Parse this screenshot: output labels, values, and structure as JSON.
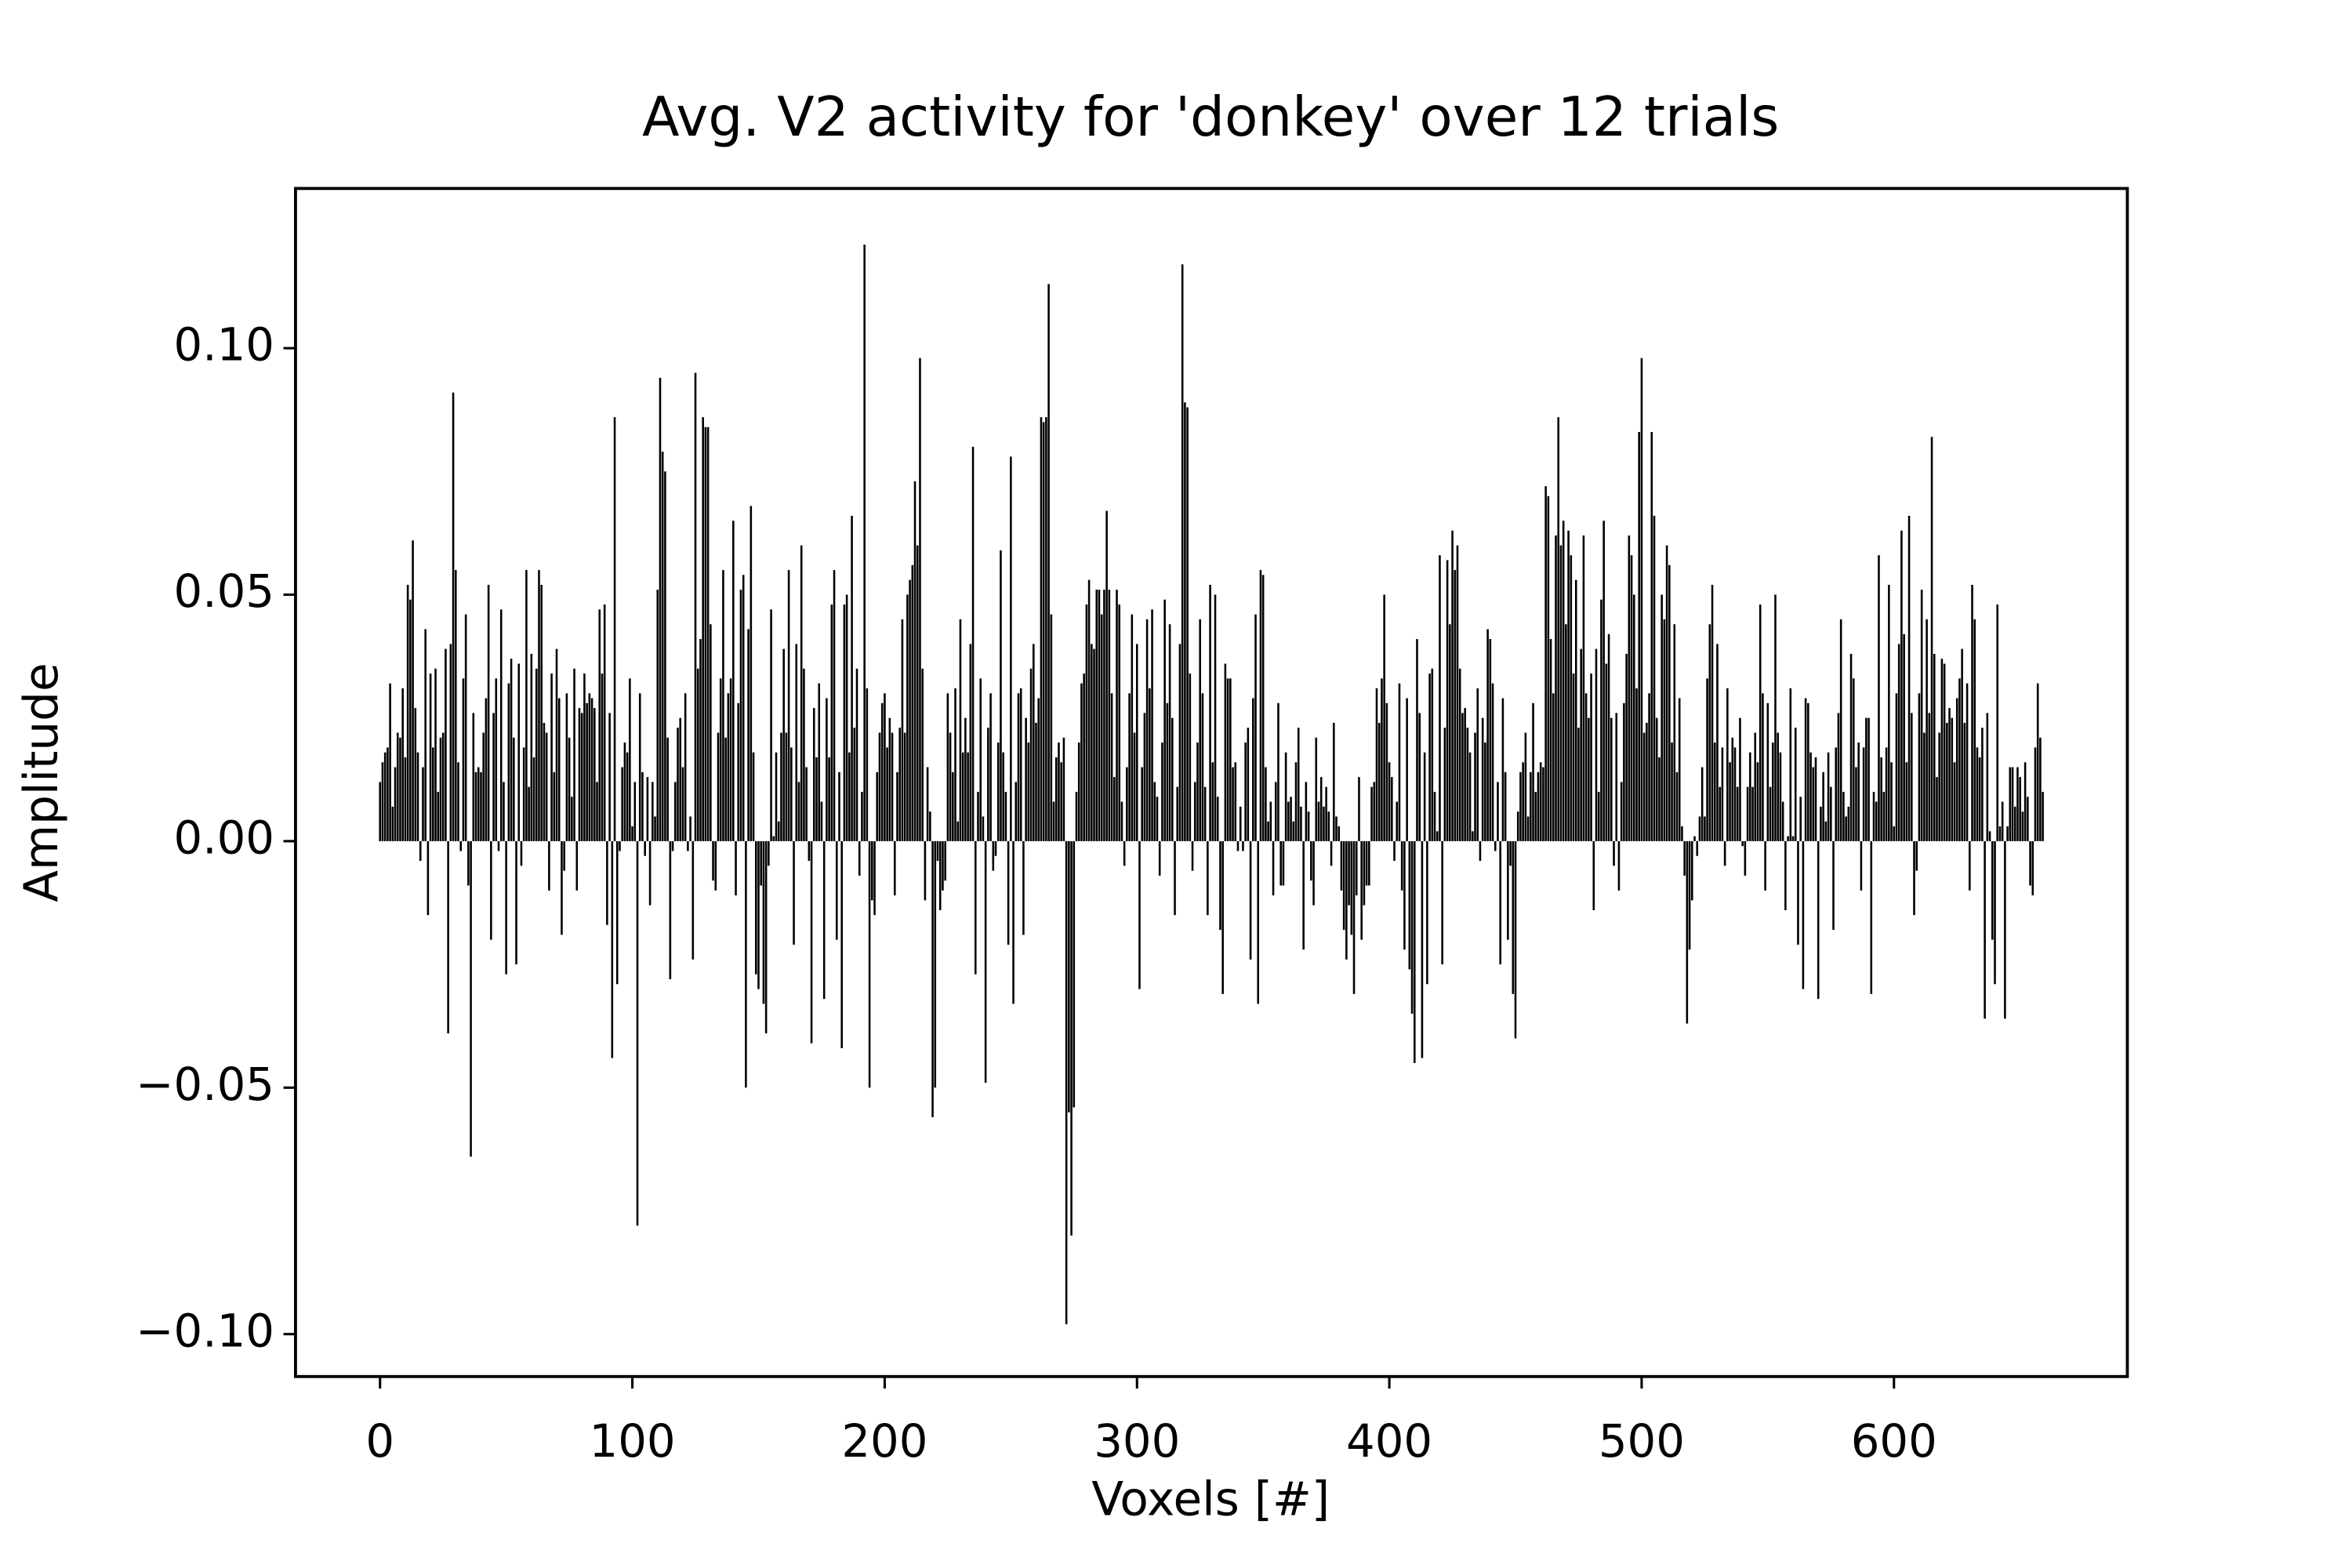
{
  "chart_data": {
    "type": "bar",
    "title": "Avg. V2 activity for 'donkey' over 12 trials",
    "xlabel": "Voxels [#]",
    "ylabel": "Amplitude",
    "color": "#000000",
    "xlim": [
      -33.5,
      692.5
    ],
    "ylim": [
      -0.1086,
      0.1324
    ],
    "xticks": [
      0,
      100,
      200,
      300,
      400,
      500,
      600
    ],
    "yticks": [
      {
        "value": -0.1,
        "label": "−0.10"
      },
      {
        "value": -0.05,
        "label": "−0.05"
      },
      {
        "value": 0,
        "label": "0.00"
      },
      0.05,
      {
        "value": 0.1,
        "label": "0.10"
      }
    ],
    "x": [
      0,
      1,
      2,
      3,
      4,
      5,
      6,
      7,
      8,
      9,
      10,
      11,
      12,
      13,
      14,
      15,
      16,
      17,
      18,
      19,
      20,
      21,
      22,
      23,
      24,
      25,
      26,
      27,
      28,
      29,
      30,
      31,
      32,
      33,
      34,
      35,
      36,
      37,
      38,
      39,
      40,
      41,
      42,
      43,
      44,
      45,
      46,
      47,
      48,
      49,
      50,
      51,
      52,
      53,
      54,
      55,
      56,
      57,
      58,
      59,
      60,
      61,
      62,
      63,
      64,
      65,
      66,
      67,
      68,
      69,
      70,
      71,
      72,
      73,
      74,
      75,
      76,
      77,
      78,
      79,
      80,
      81,
      82,
      83,
      84,
      85,
      86,
      87,
      88,
      89,
      90,
      91,
      92,
      93,
      94,
      95,
      96,
      97,
      98,
      99,
      100,
      101,
      102,
      103,
      104,
      105,
      106,
      107,
      108,
      109,
      110,
      111,
      112,
      113,
      114,
      115,
      116,
      117,
      118,
      119,
      120,
      121,
      122,
      123,
      124,
      125,
      126,
      127,
      128,
      129,
      130,
      131,
      132,
      133,
      134,
      135,
      136,
      137,
      138,
      139,
      140,
      141,
      142,
      143,
      144,
      145,
      146,
      147,
      148,
      149,
      150,
      151,
      152,
      153,
      154,
      155,
      156,
      157,
      158,
      159,
      160,
      161,
      162,
      163,
      164,
      165,
      166,
      167,
      168,
      169,
      170,
      171,
      172,
      173,
      174,
      175,
      176,
      177,
      178,
      179,
      180,
      181,
      182,
      183,
      184,
      185,
      186,
      187,
      188,
      189,
      190,
      191,
      192,
      193,
      194,
      195,
      196,
      197,
      198,
      199,
      200,
      201,
      202,
      203,
      204,
      205,
      206,
      207,
      208,
      209,
      210,
      211,
      212,
      213,
      214,
      215,
      216,
      217,
      218,
      219,
      220,
      221,
      222,
      223,
      224,
      225,
      226,
      227,
      228,
      229,
      230,
      231,
      232,
      233,
      234,
      235,
      236,
      237,
      238,
      239,
      240,
      241,
      242,
      243,
      244,
      245,
      246,
      247,
      248,
      249,
      250,
      251,
      252,
      253,
      254,
      255,
      256,
      257,
      258,
      259,
      260,
      261,
      262,
      263,
      264,
      265,
      266,
      267,
      268,
      269,
      270,
      271,
      272,
      273,
      274,
      275,
      276,
      277,
      278,
      279,
      280,
      281,
      282,
      283,
      284,
      285,
      286,
      287,
      288,
      289,
      290,
      291,
      292,
      293,
      294,
      295,
      296,
      297,
      298,
      299,
      300,
      301,
      302,
      303,
      304,
      305,
      306,
      307,
      308,
      309,
      310,
      311,
      312,
      313,
      314,
      315,
      316,
      317,
      318,
      319,
      320,
      321,
      322,
      323,
      324,
      325,
      326,
      327,
      328,
      329,
      330,
      331,
      332,
      333,
      334,
      335,
      336,
      337,
      338,
      339,
      340,
      341,
      342,
      343,
      344,
      345,
      346,
      347,
      348,
      349,
      350,
      351,
      352,
      353,
      354,
      355,
      356,
      357,
      358,
      359,
      360,
      361,
      362,
      363,
      364,
      365,
      366,
      367,
      368,
      369,
      370,
      371,
      372,
      373,
      374,
      375,
      376,
      377,
      378,
      379,
      380,
      381,
      382,
      383,
      384,
      385,
      386,
      387,
      388,
      389,
      390,
      391,
      392,
      393,
      394,
      395,
      396,
      397,
      398,
      399,
      400,
      401,
      402,
      403,
      404,
      405,
      406,
      407,
      408,
      409,
      410,
      411,
      412,
      413,
      414,
      415,
      416,
      417,
      418,
      419,
      420,
      421,
      422,
      423,
      424,
      425,
      426,
      427,
      428,
      429,
      430,
      431,
      432,
      433,
      434,
      435,
      436,
      437,
      438,
      439,
      440,
      441,
      442,
      443,
      444,
      445,
      446,
      447,
      448,
      449,
      450,
      451,
      452,
      453,
      454,
      455,
      456,
      457,
      458,
      459,
      460,
      461,
      462,
      463,
      464,
      465,
      466,
      467,
      468,
      469,
      470,
      471,
      472,
      473,
      474,
      475,
      476,
      477,
      478,
      479,
      480,
      481,
      482,
      483,
      484,
      485,
      486,
      487,
      488,
      489,
      490,
      491,
      492,
      493,
      494,
      495,
      496,
      497,
      498,
      499,
      500,
      501,
      502,
      503,
      504,
      505,
      506,
      507,
      508,
      509,
      510,
      511,
      512,
      513,
      514,
      515,
      516,
      517,
      518,
      519,
      520,
      521,
      522,
      523,
      524,
      525,
      526,
      527,
      528,
      529,
      530,
      531,
      532,
      533,
      534,
      535,
      536,
      537,
      538,
      539,
      540,
      541,
      542,
      543,
      544,
      545,
      546,
      547,
      548,
      549,
      550,
      551,
      552,
      553,
      554,
      555,
      556,
      557,
      558,
      559,
      560,
      561,
      562,
      563,
      564,
      565,
      566,
      567,
      568,
      569,
      570,
      571,
      572,
      573,
      574,
      575,
      576,
      577,
      578,
      579,
      580,
      581,
      582,
      583,
      584,
      585,
      586,
      587,
      588,
      589,
      590,
      591,
      592,
      593,
      594,
      595,
      596,
      597,
      598,
      599,
      600,
      601,
      602,
      603,
      604,
      605,
      606,
      607,
      608,
      609,
      610,
      611,
      612,
      613,
      614,
      615,
      616,
      617,
      618,
      619,
      620,
      621,
      622,
      623,
      624,
      625,
      626,
      627,
      628,
      629,
      630,
      631,
      632,
      633,
      634,
      635,
      636,
      637,
      638,
      639,
      640,
      641,
      642,
      643,
      644,
      645,
      646,
      647,
      648,
      649,
      650,
      651,
      652,
      653,
      654,
      655,
      656,
      657,
      658,
      659
    ],
    "values": [
      0.012,
      0.016,
      0.018,
      0.019,
      0.032,
      0.007,
      0.015,
      0.022,
      0.021,
      0.031,
      0.017,
      0.052,
      0.049,
      0.061,
      0.027,
      0.018,
      -0.004,
      0.015,
      0.043,
      -0.015,
      0.034,
      0.019,
      0.035,
      0.01,
      0.021,
      0.022,
      0.039,
      -0.039,
      0.04,
      0.091,
      0.055,
      0.016,
      -0.002,
      0.033,
      0.046,
      -0.009,
      -0.064,
      0.026,
      0.014,
      0.015,
      0.014,
      0.022,
      0.029,
      0.052,
      -0.02,
      0.026,
      0.033,
      -0.002,
      0.047,
      0.012,
      -0.027,
      0.032,
      0.037,
      0.021,
      -0.025,
      0.036,
      -0.005,
      0.019,
      0.055,
      0.011,
      0.038,
      0.017,
      0.035,
      0.055,
      0.052,
      0.024,
      0.022,
      -0.01,
      0.034,
      0.014,
      0.039,
      0.029,
      -0.019,
      -0.006,
      0.03,
      0.021,
      0.009,
      0.035,
      -0.01,
      0.027,
      0.026,
      0.034,
      0.028,
      0.03,
      0.029,
      0.027,
      0.012,
      0.047,
      0.034,
      0.048,
      -0.017,
      0.026,
      -0.044,
      0.086,
      -0.029,
      -0.002,
      0.015,
      0.02,
      0.018,
      0.033,
      0.003,
      0.012,
      -0.078,
      0.03,
      0.014,
      -0.003,
      0.013,
      -0.013,
      0.012,
      0.005,
      0.051,
      0.094,
      0.079,
      0.075,
      0.021,
      -0.028,
      -0.002,
      0.012,
      0.023,
      0.025,
      0.015,
      0.03,
      -0.002,
      0.005,
      -0.024,
      0.095,
      0.035,
      0.041,
      0.086,
      0.084,
      0.084,
      0.044,
      -0.008,
      -0.01,
      0.022,
      0.033,
      0.055,
      0.021,
      0.03,
      0.033,
      0.065,
      -0.011,
      0.028,
      0.051,
      0.054,
      -0.05,
      0.043,
      0.068,
      0.018,
      -0.027,
      -0.03,
      -0.009,
      -0.033,
      -0.039,
      -0.005,
      0.047,
      0.001,
      0.018,
      0.004,
      0.022,
      0.039,
      0.022,
      0.055,
      0.019,
      -0.021,
      0.04,
      0.012,
      0.06,
      0.035,
      0.015,
      -0.004,
      -0.041,
      0.027,
      0.017,
      0.032,
      0.008,
      -0.032,
      0.029,
      0.017,
      0.048,
      0.055,
      -0.02,
      0.014,
      -0.042,
      0.048,
      0.05,
      0.018,
      0.066,
      0.023,
      0.035,
      -0.007,
      0.01,
      0.121,
      0.031,
      -0.05,
      -0.012,
      -0.015,
      0.014,
      0.022,
      0.028,
      0.03,
      0.019,
      0.025,
      0.022,
      -0.011,
      0.014,
      0.023,
      0.045,
      0.022,
      0.05,
      0.053,
      0.056,
      0.073,
      0.06,
      0.098,
      0.035,
      -0.012,
      0.015,
      0.006,
      -0.056,
      -0.05,
      -0.004,
      -0.014,
      -0.01,
      -0.008,
      0.03,
      0.022,
      0.014,
      0.031,
      0.004,
      0.045,
      0.018,
      0.025,
      0.018,
      0.04,
      0.08,
      -0.027,
      0.01,
      0.033,
      0.005,
      -0.049,
      0.023,
      0.03,
      -0.006,
      -0.003,
      0.02,
      0.059,
      0.018,
      0.01,
      -0.021,
      0.078,
      -0.033,
      0.012,
      0.03,
      0.031,
      -0.019,
      0.025,
      0.02,
      0.035,
      0.04,
      0.024,
      0.029,
      0.086,
      0.085,
      0.086,
      0.113,
      0.046,
      0.008,
      0.017,
      0.02,
      0.016,
      0.021,
      -0.098,
      -0.055,
      -0.08,
      -0.054,
      0.01,
      0.02,
      0.032,
      0.034,
      0.048,
      0.053,
      0.04,
      0.039,
      0.051,
      0.051,
      0.046,
      0.051,
      0.067,
      0.051,
      0.03,
      0.013,
      0.051,
      0.048,
      0.008,
      -0.005,
      0.015,
      0.03,
      0.046,
      0.022,
      0.04,
      -0.03,
      0.015,
      0.026,
      0.045,
      0.031,
      0.047,
      0.012,
      0.009,
      -0.007,
      0.02,
      0.049,
      0.028,
      0.044,
      0.025,
      -0.015,
      0.011,
      0.04,
      0.117,
      0.089,
      0.088,
      0.034,
      -0.006,
      0.012,
      0.02,
      0.045,
      0.03,
      0.011,
      -0.015,
      0.052,
      0.016,
      0.05,
      0.009,
      -0.018,
      -0.031,
      0.036,
      0.033,
      0.033,
      0.015,
      0.016,
      -0.002,
      0.007,
      -0.002,
      0.02,
      0.023,
      -0.024,
      0.029,
      0.046,
      -0.033,
      0.055,
      0.054,
      0.015,
      0.004,
      0.008,
      -0.011,
      0.012,
      0.028,
      -0.009,
      -0.009,
      0.018,
      0.008,
      0.009,
      0.004,
      0.016,
      0.023,
      0.007,
      -0.022,
      0.012,
      0.006,
      -0.008,
      -0.013,
      0.021,
      0.008,
      0.013,
      0.007,
      0.011,
      0.006,
      -0.005,
      0.024,
      0.005,
      0.003,
      -0.01,
      -0.018,
      -0.024,
      -0.013,
      -0.019,
      -0.031,
      -0.011,
      0.013,
      -0.02,
      -0.013,
      -0.009,
      -0.009,
      0.011,
      0.012,
      0.031,
      0.024,
      0.033,
      0.05,
      0.028,
      0.016,
      0.013,
      -0.004,
      0.008,
      0.032,
      -0.01,
      -0.022,
      0.029,
      -0.026,
      -0.035,
      -0.045,
      0.041,
      0.026,
      -0.044,
      0.018,
      -0.029,
      0.034,
      0.035,
      0.01,
      0.002,
      0.058,
      -0.025,
      0.023,
      0.057,
      0.044,
      0.063,
      0.055,
      0.06,
      0.035,
      0.026,
      0.027,
      0.023,
      0.018,
      0.002,
      0.022,
      0.031,
      -0.004,
      0.025,
      0.02,
      0.043,
      0.041,
      0.032,
      -0.002,
      0.012,
      -0.025,
      0.029,
      0.014,
      -0.02,
      -0.005,
      -0.031,
      -0.04,
      0.006,
      0.014,
      0.016,
      0.022,
      0.005,
      0.014,
      0.028,
      0.01,
      0.014,
      0.016,
      0.015,
      0.072,
      0.07,
      0.041,
      0.03,
      0.062,
      0.086,
      0.06,
      0.065,
      0.044,
      0.063,
      0.058,
      0.034,
      0.053,
      0.023,
      0.039,
      0.062,
      0.03,
      0.025,
      0.034,
      -0.014,
      0.039,
      0.01,
      0.049,
      0.065,
      0.036,
      0.042,
      0.025,
      -0.005,
      0.026,
      -0.01,
      0.012,
      0.028,
      0.038,
      0.062,
      0.058,
      0.05,
      0.031,
      0.083,
      0.098,
      0.022,
      0.024,
      0.03,
      0.083,
      0.066,
      0.025,
      0.017,
      0.05,
      0.045,
      0.06,
      0.056,
      0.02,
      0.044,
      0.014,
      0.029,
      0.003,
      -0.007,
      -0.037,
      -0.022,
      -0.012,
      0.001,
      -0.003,
      0.005,
      0.015,
      0.005,
      0.033,
      0.044,
      0.052,
      0.02,
      0.04,
      0.011,
      0.019,
      -0.005,
      0.031,
      0.016,
      0.021,
      0.019,
      0.011,
      0.025,
      -0.001,
      -0.007,
      0.011,
      0.018,
      0.011,
      0.022,
      0.016,
      0.048,
      0.03,
      -0.01,
      0.028,
      0.011,
      0.02,
      0.05,
      0.022,
      0.018,
      0.008,
      -0.014,
      0.001,
      0.031,
      0.001,
      0.023,
      -0.021,
      0.009,
      -0.03,
      0.029,
      0.028,
      0.018,
      0.015,
      0.017,
      -0.032,
      0.007,
      0.014,
      0.004,
      0.018,
      0.011,
      -0.018,
      0.019,
      0.026,
      0.045,
      0.01,
      0.005,
      0.007,
      0.038,
      0.033,
      0.015,
      0.02,
      -0.01,
      0.019,
      0.025,
      0.025,
      -0.031,
      0.01,
      0.008,
      0.058,
      0.017,
      0.01,
      0.019,
      0.052,
      0.016,
      0.003,
      0.03,
      0.04,
      0.063,
      0.042,
      0.016,
      0.066,
      0.026,
      -0.015,
      -0.006,
      0.03,
      0.051,
      0.022,
      0.045,
      0.026,
      0.082,
      0.038,
      0.013,
      0.022,
      0.037,
      0.036,
      0.024,
      0.027,
      0.025,
      0.016,
      0.029,
      0.033,
      0.039,
      0.024,
      0.032,
      -0.01,
      0.052,
      0.045,
      0.019,
      0.017,
      0.023,
      -0.036,
      0.026,
      0.002,
      -0.02,
      -0.029,
      0.048,
      0.003,
      0.008,
      -0.036,
      0.003,
      0.015,
      0.015,
      0.007,
      0.015,
      0.013,
      0.006,
      0.016,
      0.009,
      -0.009,
      -0.011,
      0.019,
      0.032,
      0.021,
      0.01
    ]
  }
}
